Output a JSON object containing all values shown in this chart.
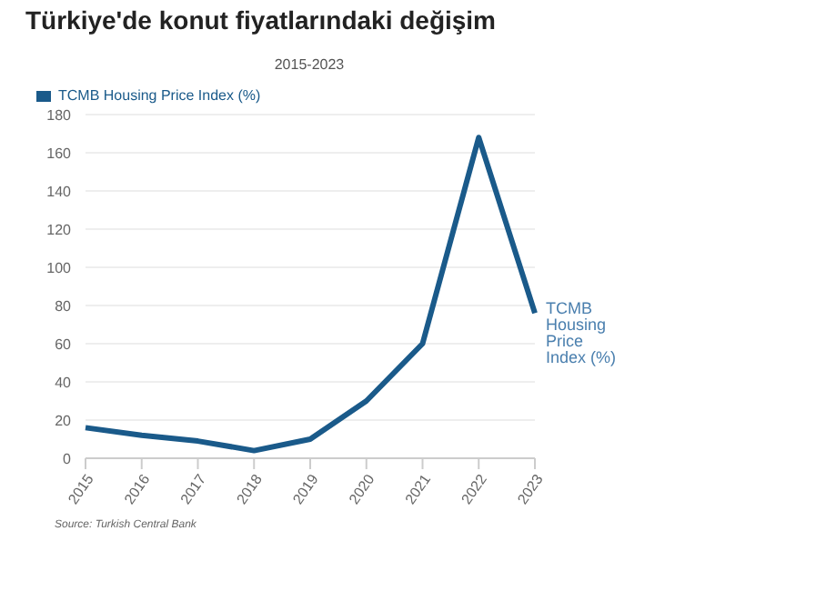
{
  "chart_data": {
    "type": "line",
    "title": "Türkiye'de konut fiyatlarındaki değişim",
    "subtitle": "2015-2023",
    "categories": [
      "2015",
      "2016",
      "2017",
      "2018",
      "2019",
      "2020",
      "2021",
      "2022",
      "2023"
    ],
    "series": [
      {
        "name": "TCMB Housing Price Index (%)",
        "color": "#1a5a8a",
        "values": [
          16,
          12,
          9,
          4,
          10,
          30,
          60,
          168,
          76
        ]
      }
    ],
    "ylim": [
      0,
      180
    ],
    "yticks": [
      0,
      20,
      40,
      60,
      80,
      100,
      120,
      140,
      160,
      180
    ],
    "grid": "y",
    "legend": "top left",
    "marker": "none",
    "line_style": "solid",
    "annotations": [
      "Source: Turkish Central Bank"
    ]
  }
}
